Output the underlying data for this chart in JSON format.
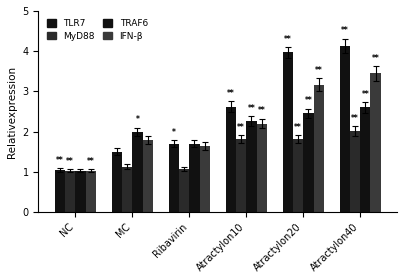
{
  "groups": [
    "NC",
    "MC",
    "Ribavirin",
    "Atractylon10",
    "Atractylon20",
    "Atractylon40"
  ],
  "series": [
    "TLR7",
    "MyD88",
    "TRAF6",
    "IFN-β"
  ],
  "bar_color": "#111111",
  "values": [
    [
      1.05,
      1.03,
      1.03,
      1.03
    ],
    [
      1.5,
      1.13,
      2.0,
      1.8
    ],
    [
      1.7,
      1.07,
      1.7,
      1.65
    ],
    [
      2.62,
      1.82,
      2.27,
      2.2
    ],
    [
      3.97,
      1.82,
      2.45,
      3.17
    ],
    [
      4.13,
      2.02,
      2.6,
      3.45
    ]
  ],
  "errors": [
    [
      0.05,
      0.04,
      0.04,
      0.04
    ],
    [
      0.08,
      0.07,
      0.1,
      0.1
    ],
    [
      0.09,
      0.06,
      0.08,
      0.1
    ],
    [
      0.13,
      0.1,
      0.12,
      0.12
    ],
    [
      0.13,
      0.1,
      0.12,
      0.15
    ],
    [
      0.18,
      0.12,
      0.13,
      0.18
    ]
  ],
  "significance": [
    [
      "**",
      "**",
      "",
      "**"
    ],
    [
      "",
      "",
      "*",
      ""
    ],
    [
      "*",
      "",
      "",
      ""
    ],
    [
      "**",
      "**",
      "**",
      "**"
    ],
    [
      "**",
      "**",
      "**",
      "**"
    ],
    [
      "**",
      "**",
      "**",
      "**"
    ]
  ],
  "ylabel": "Relativexpression",
  "ylim": [
    0,
    5
  ],
  "yticks": [
    0,
    1,
    2,
    3,
    4,
    5
  ],
  "legend_labels": [
    "TLR7",
    "MyD88",
    "TRAF6",
    "IFN-β"
  ],
  "figsize": [
    4.04,
    2.8
  ],
  "dpi": 100
}
